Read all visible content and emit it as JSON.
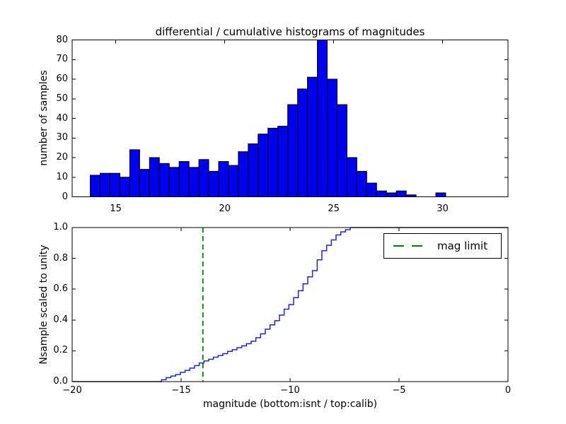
{
  "figure": {
    "title": "differential / cumulative histograms of magnitudes",
    "background": "#ffffff"
  },
  "legend": {
    "label": "mag limit",
    "line_color": "#008000",
    "position": "upper right"
  },
  "chart_data": [
    {
      "type": "bar",
      "subplot": "top",
      "title": "differential / cumulative histograms of magnitudes",
      "ylabel": "number of samples",
      "xlabel": "",
      "xlim": [
        13,
        33
      ],
      "ylim": [
        0,
        80
      ],
      "x_ticks": [
        15,
        20,
        25,
        30
      ],
      "x_tick_labels": [
        "15",
        "20",
        "25",
        "30"
      ],
      "y_ticks": [
        0,
        10,
        20,
        30,
        40,
        50,
        60,
        70,
        80
      ],
      "y_tick_labels": [
        "0",
        "10",
        "20",
        "30",
        "40",
        "50",
        "60",
        "70",
        "80"
      ],
      "bin_start": 13.83,
      "bin_width": 0.4531,
      "counts": [
        11,
        12,
        12,
        10,
        24,
        14,
        20,
        17,
        15,
        18,
        15,
        19,
        13,
        18,
        16,
        23,
        27,
        32,
        35,
        36,
        47,
        55,
        61,
        80,
        60,
        47,
        20,
        13,
        7,
        3,
        2,
        3,
        1,
        0,
        0,
        2
      ],
      "bar_color": "#0000ee",
      "bar_edge_color": "#000000",
      "grid": false
    },
    {
      "type": "line",
      "subplot": "bottom",
      "style": "cumulative-step",
      "ylabel": "Nsample scaled to unity",
      "xlabel": "magnitude (bottom:isnt / top:calib)",
      "xlim": [
        -20,
        0
      ],
      "ylim": [
        0,
        1.0
      ],
      "x_ticks": [
        -20,
        -15,
        -10,
        -5,
        0
      ],
      "x_tick_labels": [
        "−20",
        "−15",
        "−10",
        "−5",
        "0"
      ],
      "y_ticks": [
        0.0,
        0.2,
        0.4,
        0.6,
        0.8,
        1.0
      ],
      "y_tick_labels": [
        "0.0",
        "0.2",
        "0.4",
        "0.6",
        "0.8",
        "1.0"
      ],
      "step_start_x": -15.9,
      "step_width": 0.2165,
      "cumulative": [
        0.012,
        0.026,
        0.036,
        0.046,
        0.06,
        0.073,
        0.088,
        0.104,
        0.121,
        0.134,
        0.145,
        0.158,
        0.169,
        0.181,
        0.196,
        0.207,
        0.22,
        0.232,
        0.246,
        0.262,
        0.285,
        0.31,
        0.34,
        0.368,
        0.395,
        0.432,
        0.47,
        0.5,
        0.545,
        0.59,
        0.635,
        0.68,
        0.72,
        0.79,
        0.85,
        0.885,
        0.92,
        0.952,
        0.972,
        0.986,
        1.0
      ],
      "line_color": "#2525cd",
      "vline": {
        "x": -14,
        "color": "#008000",
        "style": "dashed",
        "label": "mag limit"
      },
      "legend_entries": [
        "mag limit"
      ],
      "grid": false
    }
  ]
}
